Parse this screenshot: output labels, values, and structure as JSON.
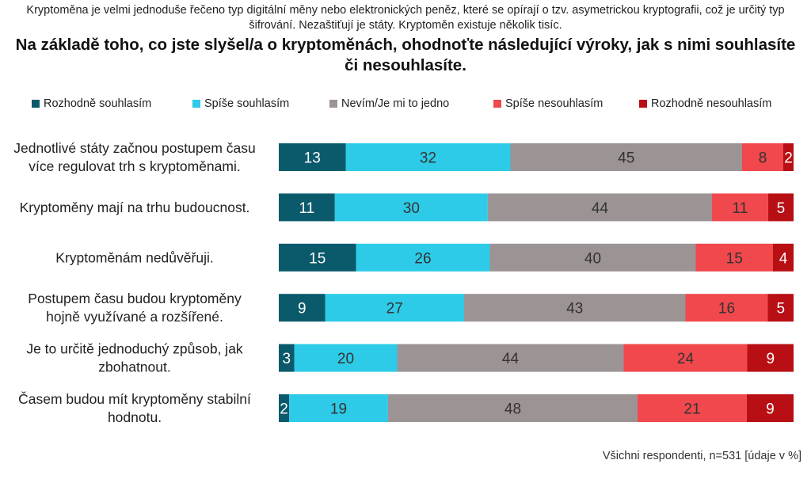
{
  "intro_text": "Kryptoměna je velmi jednoduše řečeno typ digitální měny nebo elektronických peněz, které se opírají o tzv. asymetrickou kryptografii, což je určitý typ šifrování. Nezaštiťují je státy. Kryptoměn existuje několik tisíc.",
  "title": "Na základě toho, co jste slyšel/a o kryptoměnách, ohodnoťte následující výroky, jak s nimi souhlasíte či nesouhlasíte.",
  "footnote": "Všichni respondenti, n=531 [údaje v %]",
  "chart_data": {
    "type": "bar",
    "orientation": "horizontal",
    "stacked": true,
    "unit": "%",
    "legend_position": "top",
    "categories": [
      "Jednotlivé státy začnou postupem času více regulovat trh s kryptoměnami.",
      "Kryptoměny mají na trhu budoucnost.",
      "Kryptoměnám nedůvěřuji.",
      "Postupem času budou kryptoměny hojně využívané a rozšířené.",
      "Je to určitě jednoduchý způsob, jak zbohatnout.",
      "Časem budou mít kryptoměny stabilní hodnotu."
    ],
    "category_lines": [
      [
        "Jednotlivé státy začnou postupem času",
        "více regulovat trh s kryptoměnami."
      ],
      [
        "Kryptoměny mají na trhu budoucnost."
      ],
      [
        "Kryptoměnám nedůvěřuji."
      ],
      [
        "Postupem času budou kryptoměny",
        "hojně využívané a rozšířené."
      ],
      [
        "Je to určitě jednoduchý způsob, jak",
        "zbohatnout."
      ],
      [
        "Časem budou mít kryptoměny stabilní",
        "hodnotu."
      ]
    ],
    "series": [
      {
        "name": "Rozhodně souhlasím",
        "color": "#0b5a6b",
        "label_color": "#ffffff",
        "values": [
          13,
          11,
          15,
          9,
          3,
          2
        ]
      },
      {
        "name": "Spíše souhlasím",
        "color": "#2dcbe8",
        "label_color": "#333333",
        "values": [
          32,
          30,
          26,
          27,
          20,
          19
        ]
      },
      {
        "name": "Nevím/Je mi to jedno",
        "color": "#9c9394",
        "label_color": "#333333",
        "values": [
          45,
          44,
          40,
          43,
          44,
          48
        ]
      },
      {
        "name": "Spíše nesouhlasím",
        "color": "#f0484c",
        "label_color": "#333333",
        "values": [
          8,
          11,
          15,
          16,
          24,
          21
        ]
      },
      {
        "name": "Rozhodně nesouhlasím",
        "color": "#b80f14",
        "label_color": "#ffffff",
        "values": [
          2,
          5,
          4,
          5,
          9,
          9
        ]
      }
    ]
  }
}
